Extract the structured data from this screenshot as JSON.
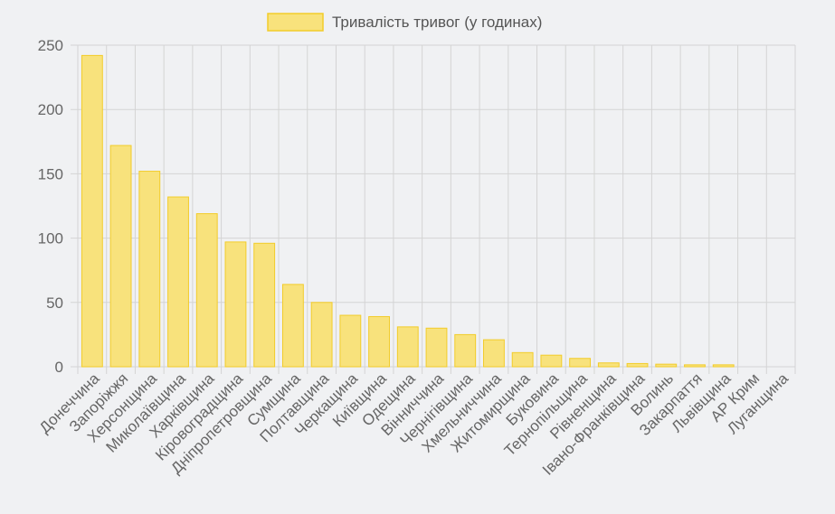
{
  "chart_data": {
    "type": "bar",
    "categories": [
      "Донеччина",
      "Запоріжжя",
      "Херсонщина",
      "Миколаївщина",
      "Харківщина",
      "Кіровоградщина",
      "Дніпропетровщина",
      "Сумщина",
      "Полтавщина",
      "Черкащина",
      "Київщина",
      "Одещина",
      "Вінниччина",
      "Чернігівщина",
      "Хмельниччина",
      "Житомирщина",
      "Буковина",
      "Тернопільщина",
      "Рівненщина",
      "Івано-Франківщина",
      "Волинь",
      "Закарпаття",
      "Львівщина",
      "АР Крим",
      "Луганщина"
    ],
    "series": [
      {
        "name": "Тривалість тривог (у годинах)",
        "values": [
          242,
          172,
          152,
          132,
          119,
          97,
          96,
          64,
          50,
          40,
          39,
          31,
          30,
          25,
          21,
          11,
          9,
          6.5,
          3,
          2.5,
          2,
          1.5,
          1.5,
          0,
          0
        ]
      }
    ],
    "yticks": [
      "0",
      "50",
      "100",
      "150",
      "200",
      "250"
    ],
    "ylim": [
      0,
      250
    ],
    "grid": true,
    "legend_position": "top",
    "colors": {
      "bar_fill": "#f8e27c",
      "bar_stroke": "#f2cc2a",
      "grid": "#d4d4d4",
      "background": "#f0f1f3"
    }
  }
}
